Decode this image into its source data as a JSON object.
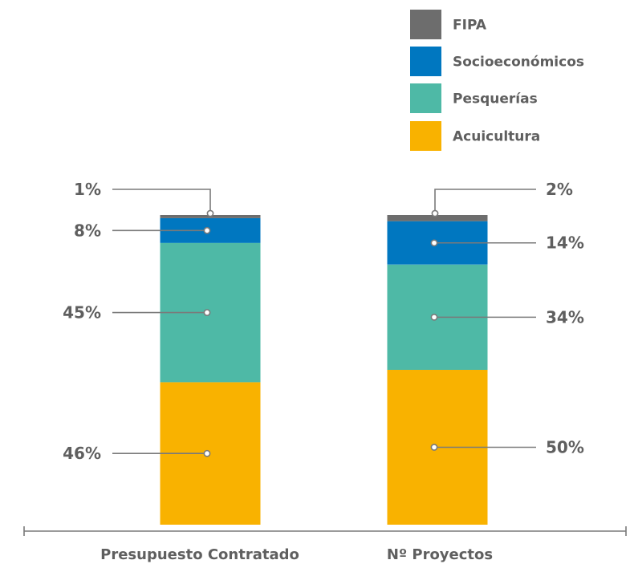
{
  "chart_data": {
    "type": "bar",
    "stacked": true,
    "percent_stacked": true,
    "categories": [
      "Presupuesto Contratado",
      "Nº Proyectos"
    ],
    "series": [
      {
        "name": "Acuicultura",
        "color": "#f9b200",
        "values": [
          46,
          50
        ],
        "labels": [
          "46%",
          "50%"
        ]
      },
      {
        "name": "Pesquerías",
        "color": "#4eb9a6",
        "values": [
          45,
          34
        ],
        "labels": [
          "45%",
          "34%"
        ]
      },
      {
        "name": "Socioeconómicos",
        "color": "#0077c0",
        "values": [
          8,
          14
        ],
        "labels": [
          "8%",
          "14%"
        ]
      },
      {
        "name": "FIPA",
        "color": "#6d6d6d",
        "values": [
          1,
          2
        ],
        "labels": [
          "1%",
          "2%"
        ]
      }
    ],
    "legend_order": [
      "FIPA",
      "Socioeconómicos",
      "Pesquerías",
      "Acuicultura"
    ],
    "legend_position": "top-right",
    "ylim": [
      0,
      100
    ],
    "grid": false
  },
  "colors": {
    "text": "#5f5f5f",
    "leader_line": "#7a7a7a",
    "axis": "#7a7a7a"
  }
}
